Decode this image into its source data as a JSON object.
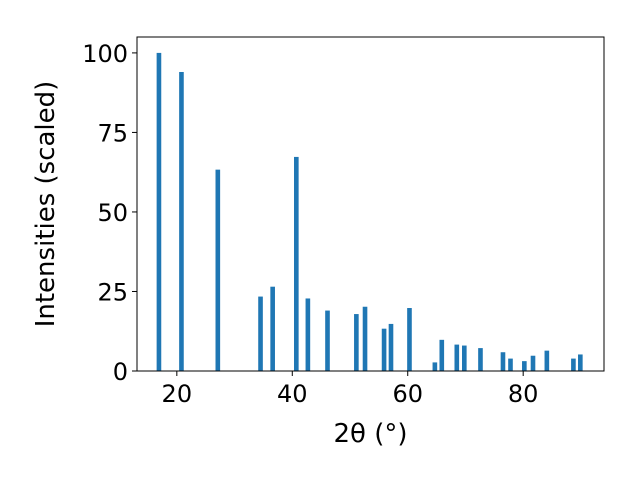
{
  "chart_data": {
    "type": "bar",
    "title": "",
    "xlabel": "2θ (°)",
    "ylabel": "Intensities (scaled)",
    "xlim": [
      13.1,
      94.0
    ],
    "ylim": [
      0,
      105
    ],
    "grid": false,
    "bar_width": 0.8,
    "bar_color": "#1f77b4",
    "x_ticks": [
      20,
      40,
      60,
      80
    ],
    "y_ticks": [
      0,
      25,
      50,
      75,
      100
    ],
    "x_tick_labels": [
      "20",
      "40",
      "60",
      "80"
    ],
    "y_tick_labels": [
      "0",
      "25",
      "50",
      "75",
      "100"
    ],
    "x": [
      16.9,
      20.8,
      27.1,
      34.5,
      36.6,
      40.7,
      42.7,
      46.1,
      51.1,
      52.6,
      55.9,
      57.1,
      60.3,
      64.7,
      65.9,
      68.5,
      69.8,
      72.6,
      76.5,
      77.8,
      80.2,
      81.7,
      84.1,
      88.7,
      89.9
    ],
    "values": [
      100,
      94,
      63.3,
      23.4,
      26.5,
      67.3,
      22.8,
      19,
      17.9,
      20.2,
      13.3,
      14.8,
      19.8,
      2.7,
      9.8,
      8.3,
      8,
      7.2,
      5.9,
      3.9,
      3.1,
      4.8,
      6.4,
      3.9,
      5.2
    ]
  }
}
